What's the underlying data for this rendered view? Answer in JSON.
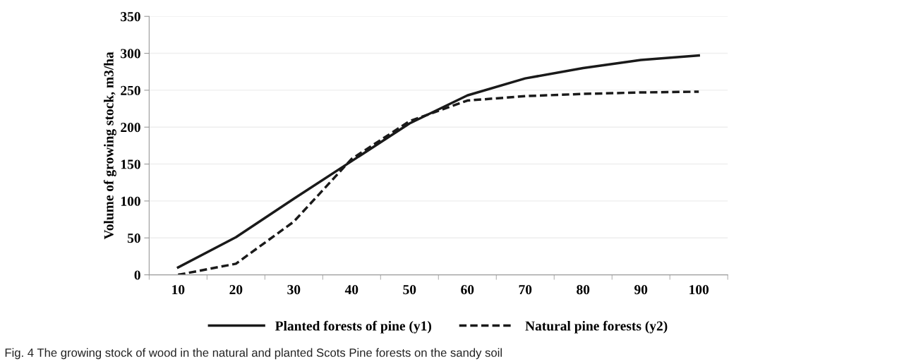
{
  "chart_data": {
    "type": "line",
    "ylabel": "Volume of growing stock, m3/ha",
    "categories": [
      "10",
      "20",
      "30",
      "40",
      "50",
      "60",
      "70",
      "80",
      "90",
      "100"
    ],
    "series": [
      {
        "name": "Planted forests of pine (y1)",
        "color": "#1a1a1a",
        "line_style": "solid",
        "values": [
          10,
          51,
          103,
          154,
          205,
          243,
          266,
          280,
          291,
          297
        ]
      },
      {
        "name": "Natural pine forests (y2)",
        "color": "#1a1a1a",
        "line_style": "dashed",
        "values": [
          0,
          15,
          72,
          157,
          208,
          236,
          242,
          245,
          247,
          248
        ]
      }
    ],
    "ylim": [
      0,
      350
    ],
    "yticks": [
      0,
      50,
      100,
      150,
      200,
      250,
      300,
      350
    ],
    "grid": "y",
    "legend": "bottom",
    "annotations": [
      "Fig. 4 The growing stock of wood in the natural and planted Scots Pine forests on the sandy soil"
    ]
  }
}
